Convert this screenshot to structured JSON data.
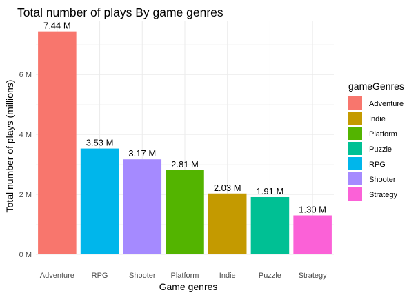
{
  "chart_data": {
    "type": "bar",
    "title": "Total number of plays By game genres",
    "xlabel": "Game genres",
    "ylabel": "Total number of plays (millions)",
    "categories": [
      "Adventure",
      "RPG",
      "Shooter",
      "Platform",
      "Indie",
      "Puzzle",
      "Strategy"
    ],
    "values": [
      7.44,
      3.53,
      3.17,
      2.81,
      2.03,
      1.91,
      1.3
    ],
    "value_labels": [
      "7.44 M",
      "3.53 M",
      "3.17 M",
      "2.81 M",
      "2.03 M",
      "1.91 M",
      "1.30 M"
    ],
    "bar_colors": [
      "#F8766D",
      "#00B6EB",
      "#A58AFF",
      "#53B400",
      "#C49A00",
      "#00C094",
      "#FB61D7"
    ],
    "ylim": [
      0,
      7.8
    ],
    "yticks": [
      0,
      2,
      4,
      6
    ],
    "ytick_labels": [
      "0 M",
      "2 M",
      "4 M",
      "6 M"
    ],
    "grid": true,
    "legend": {
      "title": "gameGenres",
      "placement": "right",
      "entries": [
        {
          "label": "Adventure",
          "color": "#F8766D"
        },
        {
          "label": "Indie",
          "color": "#C49A00"
        },
        {
          "label": "Platform",
          "color": "#53B400"
        },
        {
          "label": "Puzzle",
          "color": "#00C094"
        },
        {
          "label": "RPG",
          "color": "#00B6EB"
        },
        {
          "label": "Shooter",
          "color": "#A58AFF"
        },
        {
          "label": "Strategy",
          "color": "#FB61D7"
        }
      ]
    }
  }
}
